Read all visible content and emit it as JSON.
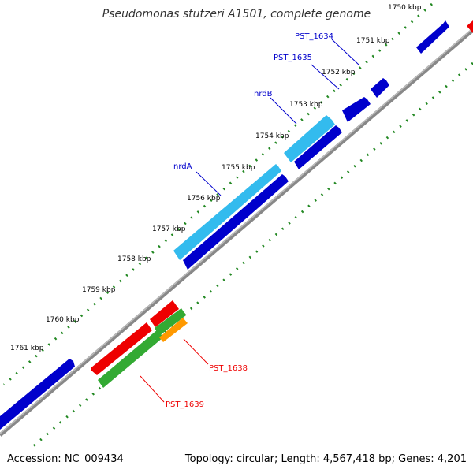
{
  "title": "Pseudomonas stutzeri A1501, complete genome",
  "footer": {
    "accession": "Accession: NC_009434",
    "summary": "Topology: circular; Length: 4,567,418 bp; Genes: 4,201"
  },
  "ticks": [
    "1750 kbp",
    "1751 kbp",
    "1752 kbp",
    "1753 kbp",
    "1754 kbp",
    "1755 kbp",
    "1756 kbp",
    "1757 kbp",
    "1758 kbp",
    "1759 kbp",
    "1760 kbp",
    "1761 kbp"
  ],
  "genes": [
    {
      "label": "PST_1634",
      "strand": "+",
      "color": "#0000cc"
    },
    {
      "label": "PST_1635",
      "strand": "+",
      "color": "#0000cc"
    },
    {
      "label": "nrdB",
      "strand": "+",
      "color": "#33bbee"
    },
    {
      "label": "nrdA",
      "strand": "+",
      "color": "#33bbee"
    },
    {
      "label": "PST_1638",
      "strand": "-",
      "color": "#ee0000"
    },
    {
      "label": "PST_1639",
      "strand": "-",
      "color": "#ee0000"
    }
  ],
  "colors": {
    "blue_gene": "#0000cc",
    "cyan_gene": "#33bbee",
    "red_gene": "#ee0000",
    "green_feature": "#33aa33",
    "orange_feature": "#ff9900",
    "backbone": "#888888",
    "tick": "#228822"
  }
}
